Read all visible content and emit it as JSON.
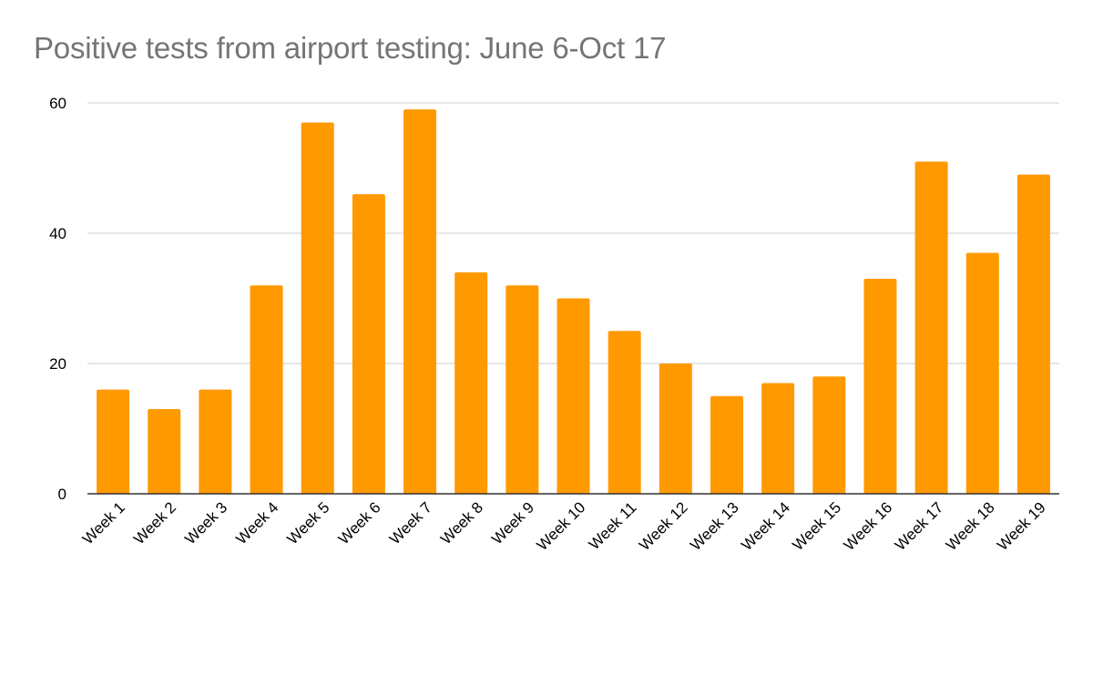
{
  "chart_data": {
    "type": "bar",
    "title": "Positive tests from airport testing: June 6-Oct 17",
    "xlabel": "",
    "ylabel": "",
    "categories": [
      "Week 1",
      "Week 2",
      "Week 3",
      "Week 4",
      "Week 5",
      "Week 6",
      "Week 7",
      "Week 8",
      "Week 9",
      "Week 10",
      "Week 11",
      "Week 12",
      "Week 13",
      "Week 14",
      "Week 15",
      "Week 16",
      "Week 17",
      "Week 18",
      "Week 19"
    ],
    "values": [
      16,
      13,
      16,
      32,
      57,
      46,
      59,
      34,
      32,
      30,
      25,
      20,
      15,
      17,
      18,
      33,
      51,
      37,
      49
    ],
    "ylim": [
      0,
      60
    ],
    "yticks": [
      "0",
      "20",
      "40",
      "60"
    ],
    "grid": true,
    "legend": "none",
    "colors": {
      "bar": "#ff9900",
      "grid": "#cccccc",
      "axis": "#333333",
      "title": "#757575"
    }
  }
}
